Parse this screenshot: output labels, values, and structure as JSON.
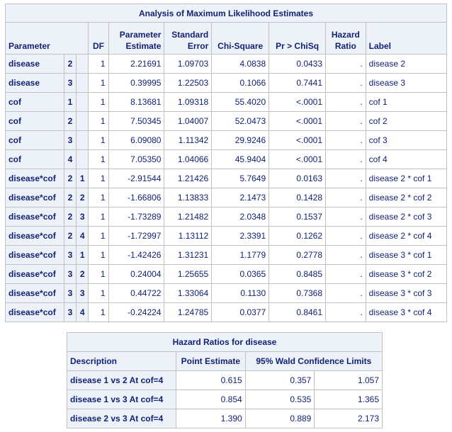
{
  "mle_table": {
    "title": "Analysis of Maximum Likelihood Estimates",
    "headers": {
      "parameter": "Parameter",
      "df": "DF",
      "estimate_line1": "Parameter",
      "estimate_line2": "Estimate",
      "se_line1": "Standard",
      "se_line2": "Error",
      "chisq": "Chi-Square",
      "p": "Pr > ChiSq",
      "hr_line1": "Hazard",
      "hr_line2": "Ratio",
      "label": "Label"
    },
    "rows": [
      {
        "parameter": "disease",
        "l1": "2",
        "l2": "",
        "df": "1",
        "estimate": "2.21691",
        "se": "1.09703",
        "chisq": "4.0838",
        "p": "0.0433",
        "hr": ".",
        "label": "disease 2"
      },
      {
        "parameter": "disease",
        "l1": "3",
        "l2": "",
        "df": "1",
        "estimate": "0.39995",
        "se": "1.22503",
        "chisq": "0.1066",
        "p": "0.7441",
        "hr": ".",
        "label": "disease 3"
      },
      {
        "parameter": "cof",
        "l1": "1",
        "l2": "",
        "df": "1",
        "estimate": "8.13681",
        "se": "1.09318",
        "chisq": "55.4020",
        "p": "<.0001",
        "hr": ".",
        "label": "cof 1"
      },
      {
        "parameter": "cof",
        "l1": "2",
        "l2": "",
        "df": "1",
        "estimate": "7.50345",
        "se": "1.04007",
        "chisq": "52.0473",
        "p": "<.0001",
        "hr": ".",
        "label": "cof 2"
      },
      {
        "parameter": "cof",
        "l1": "3",
        "l2": "",
        "df": "1",
        "estimate": "6.09080",
        "se": "1.11342",
        "chisq": "29.9246",
        "p": "<.0001",
        "hr": ".",
        "label": "cof 3"
      },
      {
        "parameter": "cof",
        "l1": "4",
        "l2": "",
        "df": "1",
        "estimate": "7.05350",
        "se": "1.04066",
        "chisq": "45.9404",
        "p": "<.0001",
        "hr": ".",
        "label": "cof 4"
      },
      {
        "parameter": "disease*cof",
        "l1": "2",
        "l2": "1",
        "df": "1",
        "estimate": "-2.91544",
        "se": "1.21426",
        "chisq": "5.7649",
        "p": "0.0163",
        "hr": ".",
        "label": "disease 2 * cof 1"
      },
      {
        "parameter": "disease*cof",
        "l1": "2",
        "l2": "2",
        "df": "1",
        "estimate": "-1.66806",
        "se": "1.13833",
        "chisq": "2.1473",
        "p": "0.1428",
        "hr": ".",
        "label": "disease 2 * cof 2"
      },
      {
        "parameter": "disease*cof",
        "l1": "2",
        "l2": "3",
        "df": "1",
        "estimate": "-1.73289",
        "se": "1.21482",
        "chisq": "2.0348",
        "p": "0.1537",
        "hr": ".",
        "label": "disease 2 * cof 3"
      },
      {
        "parameter": "disease*cof",
        "l1": "2",
        "l2": "4",
        "df": "1",
        "estimate": "-1.72997",
        "se": "1.13112",
        "chisq": "2.3391",
        "p": "0.1262",
        "hr": ".",
        "label": "disease 2 * cof 4"
      },
      {
        "parameter": "disease*cof",
        "l1": "3",
        "l2": "1",
        "df": "1",
        "estimate": "-1.42426",
        "se": "1.31231",
        "chisq": "1.1779",
        "p": "0.2778",
        "hr": ".",
        "label": "disease 3 * cof 1"
      },
      {
        "parameter": "disease*cof",
        "l1": "3",
        "l2": "2",
        "df": "1",
        "estimate": "0.24004",
        "se": "1.25655",
        "chisq": "0.0365",
        "p": "0.8485",
        "hr": ".",
        "label": "disease 3 * cof 2"
      },
      {
        "parameter": "disease*cof",
        "l1": "3",
        "l2": "3",
        "df": "1",
        "estimate": "0.44722",
        "se": "1.33064",
        "chisq": "0.1130",
        "p": "0.7368",
        "hr": ".",
        "label": "disease 3 * cof 3"
      },
      {
        "parameter": "disease*cof",
        "l1": "3",
        "l2": "4",
        "df": "1",
        "estimate": "-0.24224",
        "se": "1.24785",
        "chisq": "0.0377",
        "p": "0.8461",
        "hr": ".",
        "label": "disease 3 * cof 4"
      }
    ]
  },
  "hr_table": {
    "title": "Hazard Ratios for disease",
    "headers": {
      "description": "Description",
      "point": "Point Estimate",
      "ci": "95% Wald Confidence Limits"
    },
    "rows": [
      {
        "description": "disease 1 vs 2 At cof=4",
        "point": "0.615",
        "lower": "0.357",
        "upper": "1.057"
      },
      {
        "description": "disease 1 vs 3 At cof=4",
        "point": "0.854",
        "lower": "0.535",
        "upper": "1.365"
      },
      {
        "description": "disease 2 vs 3 At cof=4",
        "point": "1.390",
        "lower": "0.889",
        "upper": "2.173"
      }
    ]
  },
  "colors": {
    "header_bg": "#edf2f9",
    "text": "#112277",
    "border": "#c1c1c1"
  }
}
